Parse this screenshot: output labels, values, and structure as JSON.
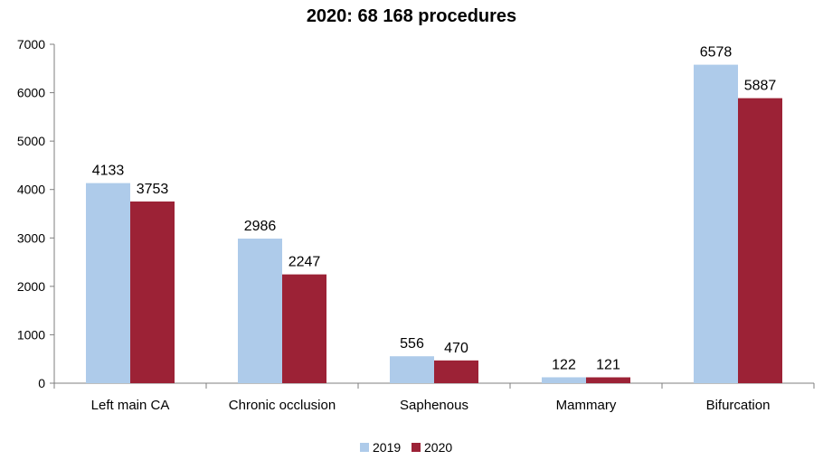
{
  "chart_data": {
    "type": "bar",
    "title": "2020: 68 168 procedures",
    "categories": [
      "Left main CA",
      "Chronic occlusion",
      "Saphenous",
      "Mammary",
      "Bifurcation"
    ],
    "series": [
      {
        "name": "2019",
        "color": "#aecbea",
        "values": [
          4133,
          2986,
          556,
          122,
          6578
        ]
      },
      {
        "name": "2020",
        "color": "#9c2236",
        "values": [
          3753,
          2247,
          470,
          121,
          5887
        ]
      }
    ],
    "yticks": [
      "0",
      "1000",
      "2000",
      "3000",
      "4000",
      "5000",
      "6000",
      "7000"
    ],
    "ylim": [
      0,
      7000
    ],
    "xlabel": "",
    "ylabel": "",
    "grid": false,
    "legend_position": "bottom"
  }
}
